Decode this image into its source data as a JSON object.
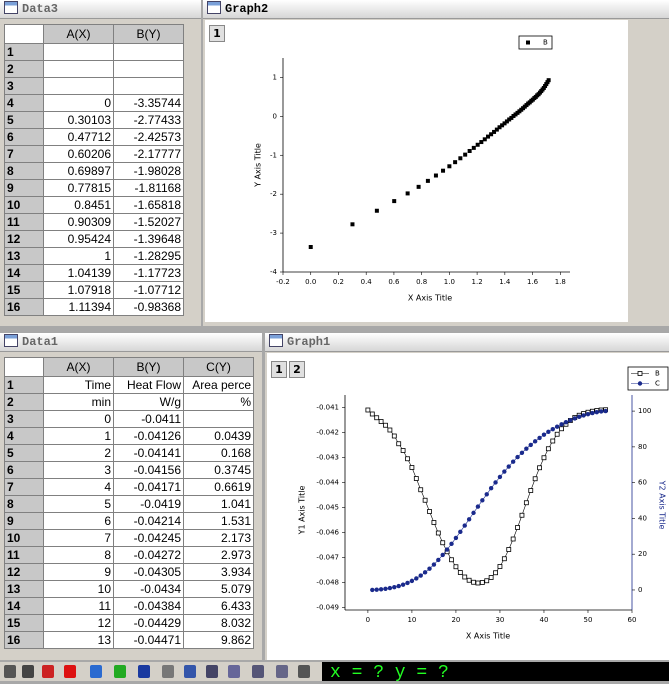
{
  "windows": {
    "data3": {
      "title": "Data3",
      "columns": [
        "A(X)",
        "B(Y)"
      ],
      "rows": [
        [
          1,
          null,
          null
        ],
        [
          2,
          null,
          null
        ],
        [
          3,
          null,
          null
        ],
        [
          4,
          0,
          -3.35744
        ],
        [
          5,
          0.30103,
          -2.77433
        ],
        [
          6,
          0.47712,
          -2.42573
        ],
        [
          7,
          0.60206,
          -2.17777
        ],
        [
          8,
          0.69897,
          -1.98028
        ],
        [
          9,
          0.77815,
          -1.81168
        ],
        [
          10,
          0.8451,
          -1.65818
        ],
        [
          11,
          0.90309,
          -1.52027
        ],
        [
          12,
          0.95424,
          -1.39648
        ],
        [
          13,
          1,
          -1.28295
        ],
        [
          14,
          1.04139,
          -1.17723
        ],
        [
          15,
          1.07918,
          -1.07712
        ],
        [
          16,
          1.11394,
          -0.98368
        ]
      ]
    },
    "graph2": {
      "title": "Graph2",
      "layer_tabs": [
        "1"
      ]
    },
    "data1": {
      "title": "Data1",
      "columns": [
        "A(X)",
        "B(Y)",
        "C(Y)"
      ],
      "rows": [
        [
          1,
          "Time",
          "Heat Flow",
          "Area perce"
        ],
        [
          2,
          "min",
          "W/g",
          "%"
        ],
        [
          3,
          0,
          -0.0411,
          null
        ],
        [
          4,
          1,
          -0.04126,
          0.0439
        ],
        [
          5,
          2,
          -0.04141,
          0.168
        ],
        [
          6,
          3,
          -0.04156,
          0.3745
        ],
        [
          7,
          4,
          -0.04171,
          0.6619
        ],
        [
          8,
          5,
          -0.0419,
          1.041
        ],
        [
          9,
          6,
          -0.04214,
          1.531
        ],
        [
          10,
          7,
          -0.04245,
          2.173
        ],
        [
          11,
          8,
          -0.04272,
          2.973
        ],
        [
          12,
          9,
          -0.04305,
          3.934
        ],
        [
          13,
          10,
          -0.0434,
          5.079
        ],
        [
          14,
          11,
          -0.04384,
          6.433
        ],
        [
          15,
          12,
          -0.04429,
          8.032
        ],
        [
          16,
          13,
          -0.04471,
          9.862
        ]
      ]
    },
    "graph1": {
      "title": "Graph1",
      "layer_tabs": [
        "1",
        "2"
      ]
    }
  },
  "chart_data": [
    {
      "type": "scatter",
      "x_label": "X Axis Title",
      "y_label": "Y Axis Title",
      "legend": "top-right",
      "xlim": [
        -0.2,
        1.87
      ],
      "ylim": [
        -4,
        1.5
      ],
      "xticks": [
        -0.2,
        {
          "value": 0,
          "label": "0.0"
        },
        0.2,
        0.4,
        0.6,
        0.8,
        {
          "value": 1,
          "label": "1.0"
        },
        1.2,
        1.4,
        1.6,
        1.8
      ],
      "yticks": [
        -4,
        -3,
        -2,
        -1,
        0,
        1
      ],
      "series": [
        {
          "name": "B",
          "color": "#000000",
          "marker": "square",
          "x": [
            0,
            0.30103,
            0.47712,
            0.60206,
            0.69897,
            0.77815,
            0.8451,
            0.90309,
            0.95424,
            1,
            1.04139,
            1.07918,
            1.11394,
            1.14613,
            1.17609,
            1.20412,
            1.23045,
            1.25527,
            1.27875,
            1.30103,
            1.32222,
            1.34242,
            1.36173,
            1.38021,
            1.39794,
            1.41497,
            1.43136,
            1.44716,
            1.4624,
            1.47712,
            1.49136,
            1.50515,
            1.51851,
            1.53148,
            1.54407,
            1.5563,
            1.5682,
            1.57978,
            1.59106,
            1.60206,
            1.61278,
            1.62325,
            1.63347,
            1.64345,
            1.65321,
            1.66276,
            1.6721,
            1.68124,
            1.6902,
            1.69897,
            1.70757,
            1.716
          ],
          "y": [
            -3.35744,
            -2.77433,
            -2.42573,
            -2.17777,
            -1.98028,
            -1.81168,
            -1.65818,
            -1.52027,
            -1.39648,
            -1.28295,
            -1.17723,
            -1.07712,
            -0.98368,
            -0.89,
            -0.81,
            -0.73,
            -0.66,
            -0.59,
            -0.52,
            -0.46,
            -0.4,
            -0.34,
            -0.28,
            -0.23,
            -0.18,
            -0.13,
            -0.08,
            -0.04,
            0.01,
            0.05,
            0.09,
            0.13,
            0.17,
            0.21,
            0.25,
            0.29,
            0.33,
            0.36,
            0.4,
            0.43,
            0.47,
            0.5,
            0.54,
            0.57,
            0.61,
            0.65,
            0.69,
            0.73,
            0.78,
            0.83,
            0.88,
            0.93
          ]
        }
      ]
    },
    {
      "type": "line",
      "x_label": "X Axis Title",
      "y_label": "Y1 Axis Title",
      "y2_label": "Y2 Axis Title",
      "legend": "top-right",
      "xlim": [
        -5.2,
        60
      ],
      "ylim": [
        -0.0491,
        -0.0405
      ],
      "y2lim": [
        -11.2,
        109
      ],
      "xticks": [
        0,
        10,
        20,
        30,
        40,
        50,
        60
      ],
      "yticks": [
        -0.049,
        -0.048,
        -0.047,
        -0.046,
        -0.045,
        -0.044,
        -0.043,
        -0.042,
        -0.041
      ],
      "y2ticks": [
        0,
        20,
        40,
        60,
        80,
        100
      ],
      "x": [
        0,
        1,
        2,
        3,
        4,
        5,
        6,
        7,
        8,
        9,
        10,
        11,
        12,
        13,
        14,
        15,
        16,
        17,
        18,
        19,
        20,
        21,
        22,
        23,
        24,
        25,
        26,
        27,
        28,
        29,
        30,
        31,
        32,
        33,
        34,
        35,
        36,
        37,
        38,
        39,
        40,
        41,
        42,
        43,
        44,
        45,
        46,
        47,
        48,
        49,
        50,
        51,
        52,
        53,
        54
      ],
      "series": [
        {
          "name": "B",
          "color": "#000000",
          "marker": "square-open",
          "values": [
            -0.0411,
            -0.04126,
            -0.04141,
            -0.04156,
            -0.04171,
            -0.0419,
            -0.04214,
            -0.04245,
            -0.04272,
            -0.04305,
            -0.0434,
            -0.04384,
            -0.04429,
            -0.04471,
            -0.04516,
            -0.0456,
            -0.04602,
            -0.04641,
            -0.04677,
            -0.04709,
            -0.04737,
            -0.0476,
            -0.04778,
            -0.04791,
            -0.04799,
            -0.04802,
            -0.048,
            -0.04793,
            -0.0478,
            -0.04761,
            -0.04736,
            -0.04705,
            -0.04668,
            -0.04626,
            -0.0458,
            -0.04531,
            -0.04481,
            -0.04432,
            -0.04385,
            -0.04341,
            -0.04301,
            -0.04265,
            -0.04234,
            -0.04207,
            -0.04185,
            -0.04167,
            -0.04152,
            -0.0414,
            -0.04131,
            -0.04124,
            -0.04119,
            -0.04115,
            -0.04112,
            -0.0411,
            -0.04109
          ]
        },
        {
          "name": "C",
          "color": "#1a2a8c",
          "marker": "circle",
          "axis": "y2",
          "values": [
            null,
            0.0439,
            0.168,
            0.3745,
            0.6619,
            1.041,
            1.531,
            2.173,
            2.973,
            3.934,
            5.079,
            6.433,
            8.032,
            9.862,
            11.9,
            14.2,
            16.8,
            19.6,
            22.6,
            25.8,
            29.1,
            32.5,
            36,
            39.5,
            43.1,
            46.6,
            50.1,
            53.5,
            56.9,
            60.1,
            63.2,
            66.2,
            69,
            71.7,
            74.3,
            76.7,
            79,
            81.1,
            83.1,
            85,
            86.8,
            88.4,
            89.9,
            91.3,
            92.6,
            93.8,
            94.9,
            95.9,
            96.8,
            97.6,
            98.3,
            98.9,
            99.4,
            99.8,
            100
          ]
        }
      ]
    }
  ],
  "status": {
    "readout": "x = ? y = ?"
  }
}
